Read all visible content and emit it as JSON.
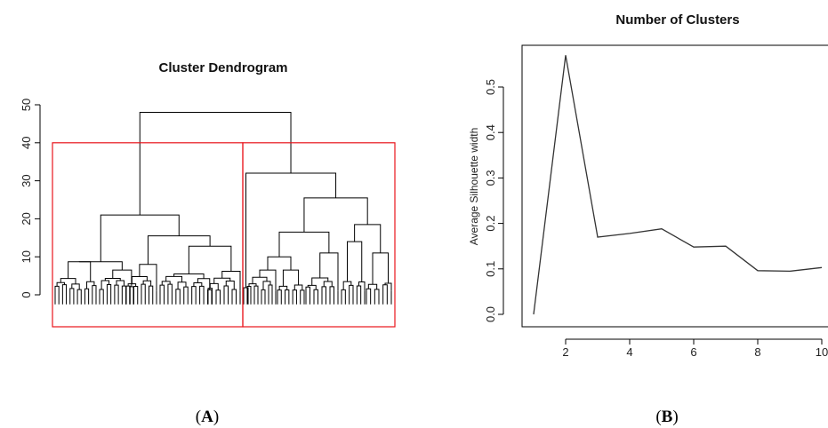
{
  "chart_data": [
    {
      "type": "dendrogram",
      "title": "Cluster Dendrogram",
      "ylim": [
        0,
        50
      ],
      "yticks": [
        "0",
        "10",
        "20",
        "30",
        "40",
        "50"
      ],
      "ytick_values": [
        0,
        10,
        20,
        30,
        40,
        50
      ],
      "root_height": 48,
      "left_cluster_height": 21,
      "right_cluster_height": 32,
      "cut_height": 40,
      "clusters": 2,
      "highlight_color": "#e8141c"
    },
    {
      "type": "line",
      "title": "Number of Clusters",
      "ylabel": "Average Silhouette width",
      "xticks": [
        "2",
        "4",
        "6",
        "8",
        "10"
      ],
      "xtick_values": [
        2,
        4,
        6,
        8,
        10
      ],
      "yticks": [
        "0.0",
        "0.1",
        "0.2",
        "0.3",
        "0.4",
        "0.5"
      ],
      "ytick_values": [
        0,
        0.1,
        0.2,
        0.3,
        0.4,
        0.5
      ],
      "x": [
        1,
        2,
        3,
        4,
        5,
        6,
        7,
        8,
        9,
        10
      ],
      "y": [
        0.0,
        0.57,
        0.17,
        0.178,
        0.188,
        0.148,
        0.15,
        0.096,
        0.095,
        0.103
      ],
      "xlim": [
        1,
        10
      ],
      "ylim": [
        0,
        0.57
      ]
    }
  ],
  "panels": {
    "a_open": "(",
    "a_letter": "A",
    "a_close": ")",
    "b_open": "(",
    "b_letter": "B",
    "b_close": ")"
  }
}
